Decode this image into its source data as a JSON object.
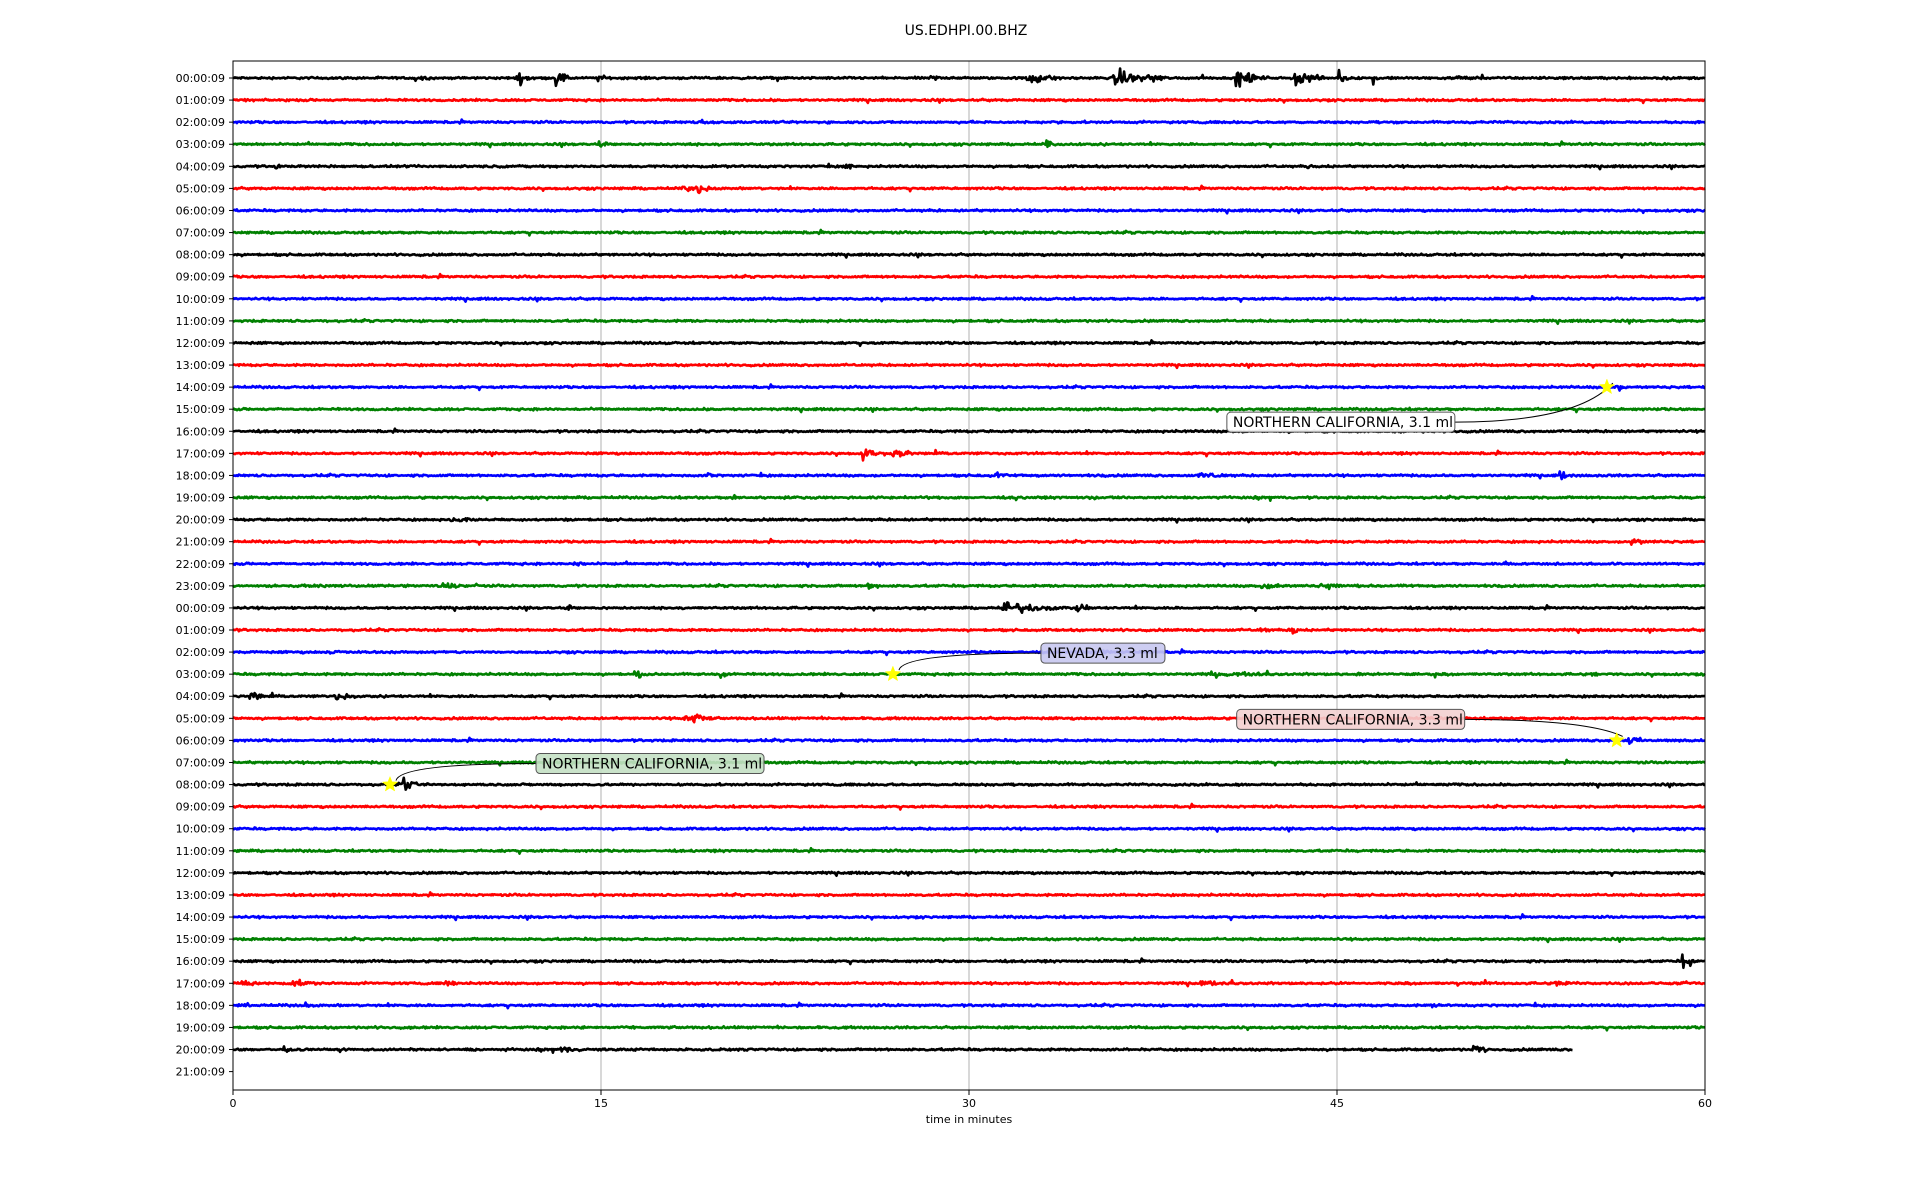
{
  "chart_data": {
    "type": "line",
    "title": "US.EDHPI.00.BHZ",
    "xlabel": "time in minutes",
    "xlim": [
      0,
      60
    ],
    "xticks": [
      0,
      15,
      30,
      45,
      60
    ],
    "grid_x": true,
    "row_labels": [
      "00:00:09",
      "01:00:09",
      "02:00:09",
      "03:00:09",
      "04:00:09",
      "05:00:09",
      "06:00:09",
      "07:00:09",
      "08:00:09",
      "09:00:09",
      "10:00:09",
      "11:00:09",
      "12:00:09",
      "13:00:09",
      "14:00:09",
      "15:00:09",
      "16:00:09",
      "17:00:09",
      "18:00:09",
      "19:00:09",
      "20:00:09",
      "21:00:09",
      "22:00:09",
      "23:00:09",
      "00:00:09",
      "01:00:09",
      "02:00:09",
      "03:00:09",
      "04:00:09",
      "05:00:09",
      "06:00:09",
      "07:00:09",
      "08:00:09",
      "09:00:09",
      "10:00:09",
      "11:00:09",
      "12:00:09",
      "13:00:09",
      "14:00:09",
      "15:00:09",
      "16:00:09",
      "17:00:09",
      "18:00:09",
      "19:00:09",
      "20:00:09",
      "21:00:09"
    ],
    "trace_colors": [
      "#000000",
      "#ff0000",
      "#0000ff",
      "#008000"
    ],
    "data_end_minutes": 54.6,
    "events": [
      {
        "label": "NORTHERN CALIFORNIA, 3.1 ml",
        "row": 14,
        "minute": 56.0,
        "marker_color": "#ffff00",
        "box_color": "#ffffff"
      },
      {
        "label": "NEVADA, 3.3 ml",
        "row": 27,
        "minute": 26.9,
        "marker_color": "#ffff00",
        "box_color": "#c8c8f0"
      },
      {
        "label": "NORTHERN CALIFORNIA, 3.3 ml",
        "row": 30,
        "minute": 56.4,
        "marker_color": "#ffff00",
        "box_color": "#f3d0d0"
      },
      {
        "label": "NORTHERN CALIFORNIA, 3.1 ml",
        "row": 32,
        "minute": 6.4,
        "marker_color": "#ffff00",
        "box_color": "#c4e0c4"
      }
    ],
    "bursts": [
      {
        "row": 0,
        "minute": 7.5,
        "amp": 0.35,
        "dur": 1.2
      },
      {
        "row": 0,
        "minute": 11.7,
        "amp": 0.9,
        "dur": 0.8
      },
      {
        "row": 0,
        "minute": 13.3,
        "amp": 1.3,
        "dur": 0.5
      },
      {
        "row": 0,
        "minute": 15.0,
        "amp": 0.6,
        "dur": 0.4
      },
      {
        "row": 0,
        "minute": 28.5,
        "amp": 0.4,
        "dur": 1.0
      },
      {
        "row": 0,
        "minute": 32.5,
        "amp": 0.9,
        "dur": 1.5
      },
      {
        "row": 0,
        "minute": 36.0,
        "amp": 1.2,
        "dur": 1.5
      },
      {
        "row": 0,
        "minute": 37.4,
        "amp": 0.7,
        "dur": 1.0
      },
      {
        "row": 0,
        "minute": 41.0,
        "amp": 1.3,
        "dur": 1.2
      },
      {
        "row": 0,
        "minute": 43.4,
        "amp": 0.9,
        "dur": 1.5
      },
      {
        "row": 0,
        "minute": 45.2,
        "amp": 0.8,
        "dur": 0.6
      },
      {
        "row": 0,
        "minute": 46.6,
        "amp": 0.7,
        "dur": 0.4
      },
      {
        "row": 0,
        "minute": 50.0,
        "amp": 0.5,
        "dur": 0.6
      },
      {
        "row": 2,
        "minute": 19.2,
        "amp": 0.4,
        "dur": 0.5
      },
      {
        "row": 3,
        "minute": 15.0,
        "amp": 0.5,
        "dur": 0.8
      },
      {
        "row": 3,
        "minute": 33.3,
        "amp": 0.6,
        "dur": 0.2
      },
      {
        "row": 3,
        "minute": 55.0,
        "amp": 0.35,
        "dur": 1.0
      },
      {
        "row": 4,
        "minute": 1.8,
        "amp": 0.35,
        "dur": 0.5
      },
      {
        "row": 4,
        "minute": 25.0,
        "amp": 0.3,
        "dur": 1.5
      },
      {
        "row": 4,
        "minute": 43.9,
        "amp": 0.35,
        "dur": 0.5
      },
      {
        "row": 5,
        "minute": 18.4,
        "amp": 0.35,
        "dur": 1.5
      },
      {
        "row": 5,
        "minute": 19.0,
        "amp": 0.9,
        "dur": 0.6
      },
      {
        "row": 14,
        "minute": 56.5,
        "amp": 0.5,
        "dur": 0.8
      },
      {
        "row": 17,
        "minute": 25.8,
        "amp": 1.0,
        "dur": 0.6
      },
      {
        "row": 17,
        "minute": 27.0,
        "amp": 0.5,
        "dur": 1.5
      },
      {
        "row": 18,
        "minute": 19.5,
        "amp": 0.35,
        "dur": 0.5
      },
      {
        "row": 18,
        "minute": 31.0,
        "amp": 0.4,
        "dur": 1.5
      },
      {
        "row": 18,
        "minute": 39.5,
        "amp": 0.45,
        "dur": 2.0
      },
      {
        "row": 18,
        "minute": 54.2,
        "amp": 0.6,
        "dur": 0.6
      },
      {
        "row": 19,
        "minute": 20.5,
        "amp": 0.35,
        "dur": 0.3
      },
      {
        "row": 19,
        "minute": 32.0,
        "amp": 0.5,
        "dur": 0.3
      },
      {
        "row": 19,
        "minute": 35.0,
        "amp": 0.3,
        "dur": 1.0
      },
      {
        "row": 20,
        "minute": 9.0,
        "amp": 0.45,
        "dur": 1.5
      },
      {
        "row": 21,
        "minute": 57.0,
        "amp": 0.5,
        "dur": 1.5
      },
      {
        "row": 22,
        "minute": 14.0,
        "amp": 0.4,
        "dur": 1.0
      },
      {
        "row": 22,
        "minute": 52.0,
        "amp": 0.35,
        "dur": 0.4
      },
      {
        "row": 22,
        "minute": 54.0,
        "amp": 0.3,
        "dur": 0.4
      },
      {
        "row": 23,
        "minute": 8.5,
        "amp": 0.4,
        "dur": 2.0
      },
      {
        "row": 23,
        "minute": 26.0,
        "amp": 0.35,
        "dur": 1.0
      },
      {
        "row": 23,
        "minute": 42.0,
        "amp": 0.7,
        "dur": 1.0
      },
      {
        "row": 23,
        "minute": 44.5,
        "amp": 0.6,
        "dur": 1.0
      },
      {
        "row": 24,
        "minute": 13.7,
        "amp": 0.6,
        "dur": 0.5
      },
      {
        "row": 24,
        "minute": 31.5,
        "amp": 0.8,
        "dur": 3.0
      },
      {
        "row": 24,
        "minute": 34.5,
        "amp": 0.5,
        "dur": 1.0
      },
      {
        "row": 25,
        "minute": 42.0,
        "amp": 0.35,
        "dur": 1.0
      },
      {
        "row": 25,
        "minute": 43.3,
        "amp": 0.6,
        "dur": 0.3
      },
      {
        "row": 26,
        "minute": 4.0,
        "amp": 0.4,
        "dur": 0.3
      },
      {
        "row": 26,
        "minute": 21.0,
        "amp": 0.35,
        "dur": 1.0
      },
      {
        "row": 26,
        "minute": 35.5,
        "amp": 0.35,
        "dur": 1.0
      },
      {
        "row": 27,
        "minute": 16.5,
        "amp": 0.45,
        "dur": 1.2
      },
      {
        "row": 27,
        "minute": 20.0,
        "amp": 0.5,
        "dur": 0.5
      },
      {
        "row": 27,
        "minute": 40.0,
        "amp": 0.35,
        "dur": 4.0
      },
      {
        "row": 27,
        "minute": 46.0,
        "amp": 0.35,
        "dur": 0.5
      },
      {
        "row": 27,
        "minute": 55.5,
        "amp": 0.35,
        "dur": 1.0
      },
      {
        "row": 28,
        "minute": 0.8,
        "amp": 0.6,
        "dur": 1.0
      },
      {
        "row": 28,
        "minute": 4.2,
        "amp": 0.5,
        "dur": 1.5
      },
      {
        "row": 29,
        "minute": 18.5,
        "amp": 0.4,
        "dur": 2.0
      },
      {
        "row": 29,
        "minute": 18.9,
        "amp": 1.0,
        "dur": 0.6
      },
      {
        "row": 30,
        "minute": 57.0,
        "amp": 0.55,
        "dur": 1.0
      },
      {
        "row": 32,
        "minute": 7.0,
        "amp": 0.8,
        "dur": 0.8
      },
      {
        "row": 40,
        "minute": 59.2,
        "amp": 1.4,
        "dur": 0.5
      },
      {
        "row": 41,
        "minute": 0.5,
        "amp": 0.5,
        "dur": 0.8
      },
      {
        "row": 41,
        "minute": 2.5,
        "amp": 0.35,
        "dur": 2.5
      },
      {
        "row": 41,
        "minute": 8.8,
        "amp": 0.4,
        "dur": 0.8
      },
      {
        "row": 41,
        "minute": 39.5,
        "amp": 0.35,
        "dur": 2.0
      },
      {
        "row": 41,
        "minute": 50.0,
        "amp": 0.45,
        "dur": 0.4
      },
      {
        "row": 41,
        "minute": 54.0,
        "amp": 0.35,
        "dur": 2.0
      },
      {
        "row": 42,
        "minute": 3.1,
        "amp": 0.4,
        "dur": 0.4
      },
      {
        "row": 42,
        "minute": 49.0,
        "amp": 0.3,
        "dur": 0.6
      },
      {
        "row": 43,
        "minute": 7.2,
        "amp": 0.3,
        "dur": 0.4
      },
      {
        "row": 43,
        "minute": 14.3,
        "amp": 0.35,
        "dur": 0.6
      },
      {
        "row": 44,
        "minute": 2.2,
        "amp": 0.5,
        "dur": 0.4
      },
      {
        "row": 44,
        "minute": 13.5,
        "amp": 0.35,
        "dur": 1.5
      },
      {
        "row": 44,
        "minute": 50.7,
        "amp": 0.8,
        "dur": 0.7
      }
    ]
  }
}
